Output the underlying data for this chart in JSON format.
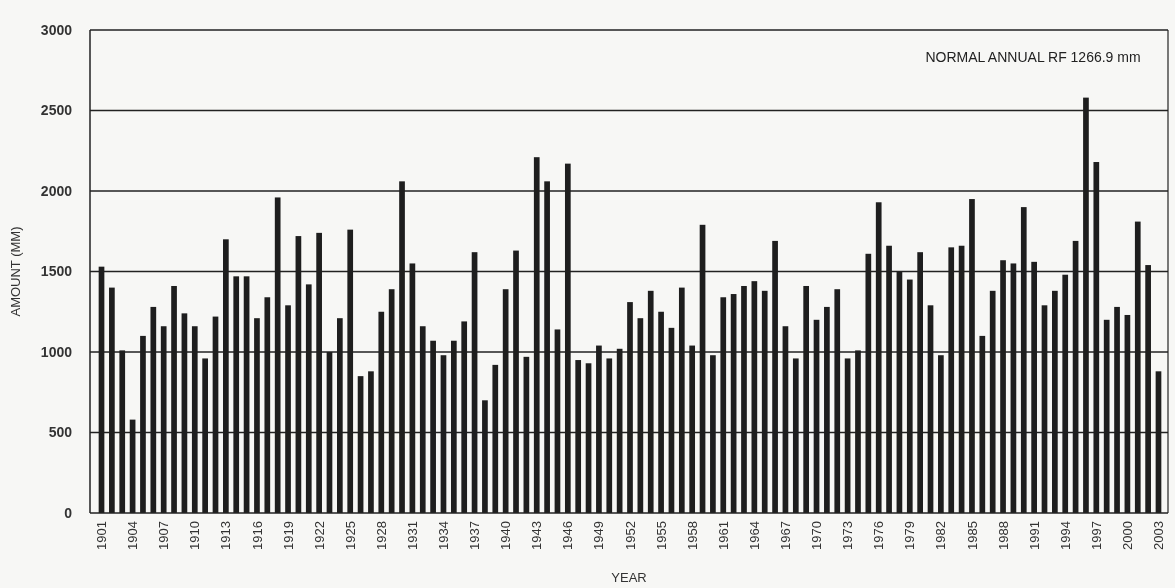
{
  "chart_data": {
    "type": "bar",
    "xlabel": "YEAR",
    "ylabel": "AMOUNT (MM)",
    "annotations": [
      "NORMAL ANNUAL RF 1266.9 mm"
    ],
    "categories": [
      "1901",
      null,
      null,
      "1904",
      null,
      null,
      "1907",
      null,
      null,
      "1910",
      null,
      null,
      "1913",
      null,
      null,
      "1916",
      null,
      null,
      "1919",
      null,
      null,
      "1922",
      null,
      null,
      "1925",
      null,
      null,
      "1928",
      null,
      null,
      "1931",
      null,
      null,
      "1934",
      null,
      null,
      "1937",
      null,
      null,
      "1940",
      null,
      null,
      "1943",
      null,
      null,
      "1946",
      null,
      null,
      "1949",
      null,
      null,
      "1952",
      null,
      null,
      "1955",
      null,
      null,
      "1958",
      null,
      null,
      "1961",
      null,
      null,
      "1964",
      null,
      null,
      "1967",
      null,
      null,
      "1970",
      null,
      null,
      "1973",
      null,
      null,
      "1976",
      null,
      null,
      "1979",
      null,
      null,
      "1982",
      null,
      null,
      "1985",
      null,
      null,
      "1988",
      null,
      null,
      "1991",
      null,
      null,
      "1994",
      null,
      null,
      "1997",
      null,
      null,
      "2000",
      null,
      null,
      "2003"
    ],
    "values": [
      1530,
      1400,
      1010,
      580,
      1100,
      1280,
      1160,
      1410,
      1240,
      1160,
      960,
      1220,
      1700,
      1470,
      1470,
      1210,
      1340,
      1960,
      1290,
      1720,
      1420,
      1740,
      1000,
      1210,
      1760,
      850,
      880,
      1250,
      1390,
      2060,
      1550,
      1160,
      1070,
      980,
      1070,
      1190,
      1620,
      700,
      920,
      1390,
      1630,
      970,
      2210,
      2060,
      1140,
      2170,
      950,
      930,
      1040,
      960,
      1020,
      1310,
      1210,
      1380,
      1250,
      1150,
      1400,
      1040,
      1790,
      980,
      1340,
      1360,
      1410,
      1440,
      1380,
      1690,
      1160,
      960,
      1410,
      1200,
      1280,
      1390,
      960,
      1010,
      1610,
      1930,
      1660,
      1500,
      1450,
      1620,
      1290,
      980,
      1650,
      1660,
      1950,
      1100,
      1380,
      1570,
      1550,
      1900,
      1560,
      1290,
      1380,
      1480,
      1690,
      2580,
      2180,
      1200,
      1280,
      1230,
      1810,
      1540,
      880
    ],
    "color": "#1e1e1e",
    "ylim": [
      0,
      3000
    ],
    "yticks": [
      0,
      500,
      1000,
      1500,
      2000,
      2500,
      3000
    ],
    "grid": "y"
  }
}
